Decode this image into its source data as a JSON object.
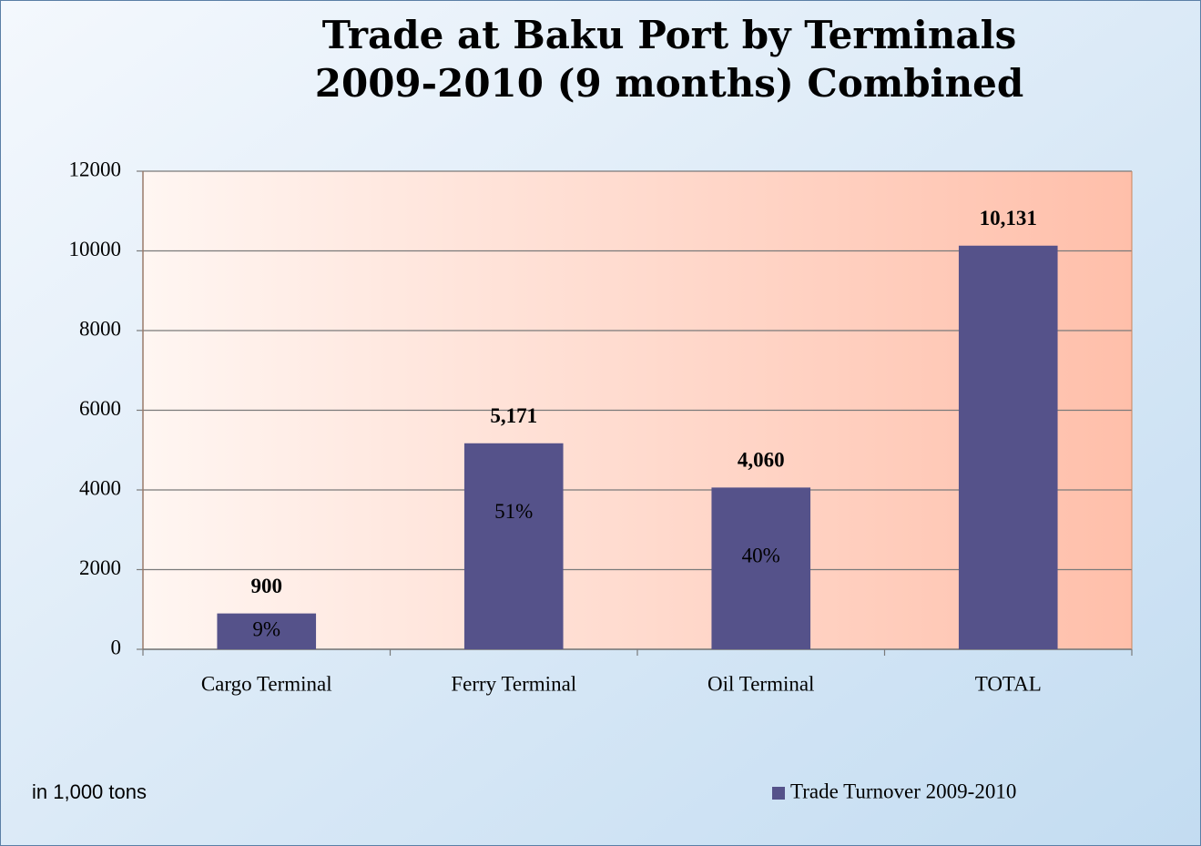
{
  "chart_data": {
    "type": "bar",
    "title": [
      "Trade at Baku Port by Terminals",
      "2009-2010 (9 months) Combined"
    ],
    "categories": [
      "Cargo Terminal",
      "Ferry Terminal",
      "Oil Terminal",
      "TOTAL"
    ],
    "series": [
      {
        "name": "Trade Turnover 2009-2010",
        "color": "#55528a",
        "values": [
          900,
          5171,
          4060,
          10131
        ],
        "value_labels": [
          "900",
          "5,171",
          "4,060",
          "10,131"
        ],
        "share_labels": [
          "9%",
          "51%",
          "40%",
          null
        ]
      }
    ],
    "ylim": [
      0,
      12000
    ],
    "yticks": [
      0,
      2000,
      4000,
      6000,
      8000,
      10000,
      12000
    ],
    "grid": true,
    "legend": "bottom-right",
    "note": "in 1,000 tons"
  }
}
